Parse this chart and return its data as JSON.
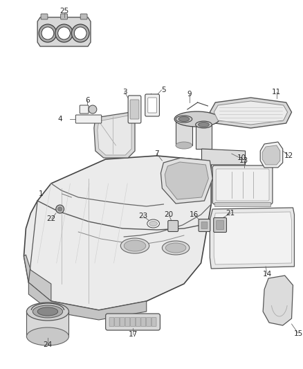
{
  "background_color": "#ffffff",
  "label_color": "#2a2a2a",
  "line_color": "#444444",
  "part_fill": "#f0f0f0",
  "part_dark": "#c8c8c8",
  "part_mid": "#dcdcdc",
  "figsize": [
    4.38,
    5.33
  ],
  "dpi": 100
}
